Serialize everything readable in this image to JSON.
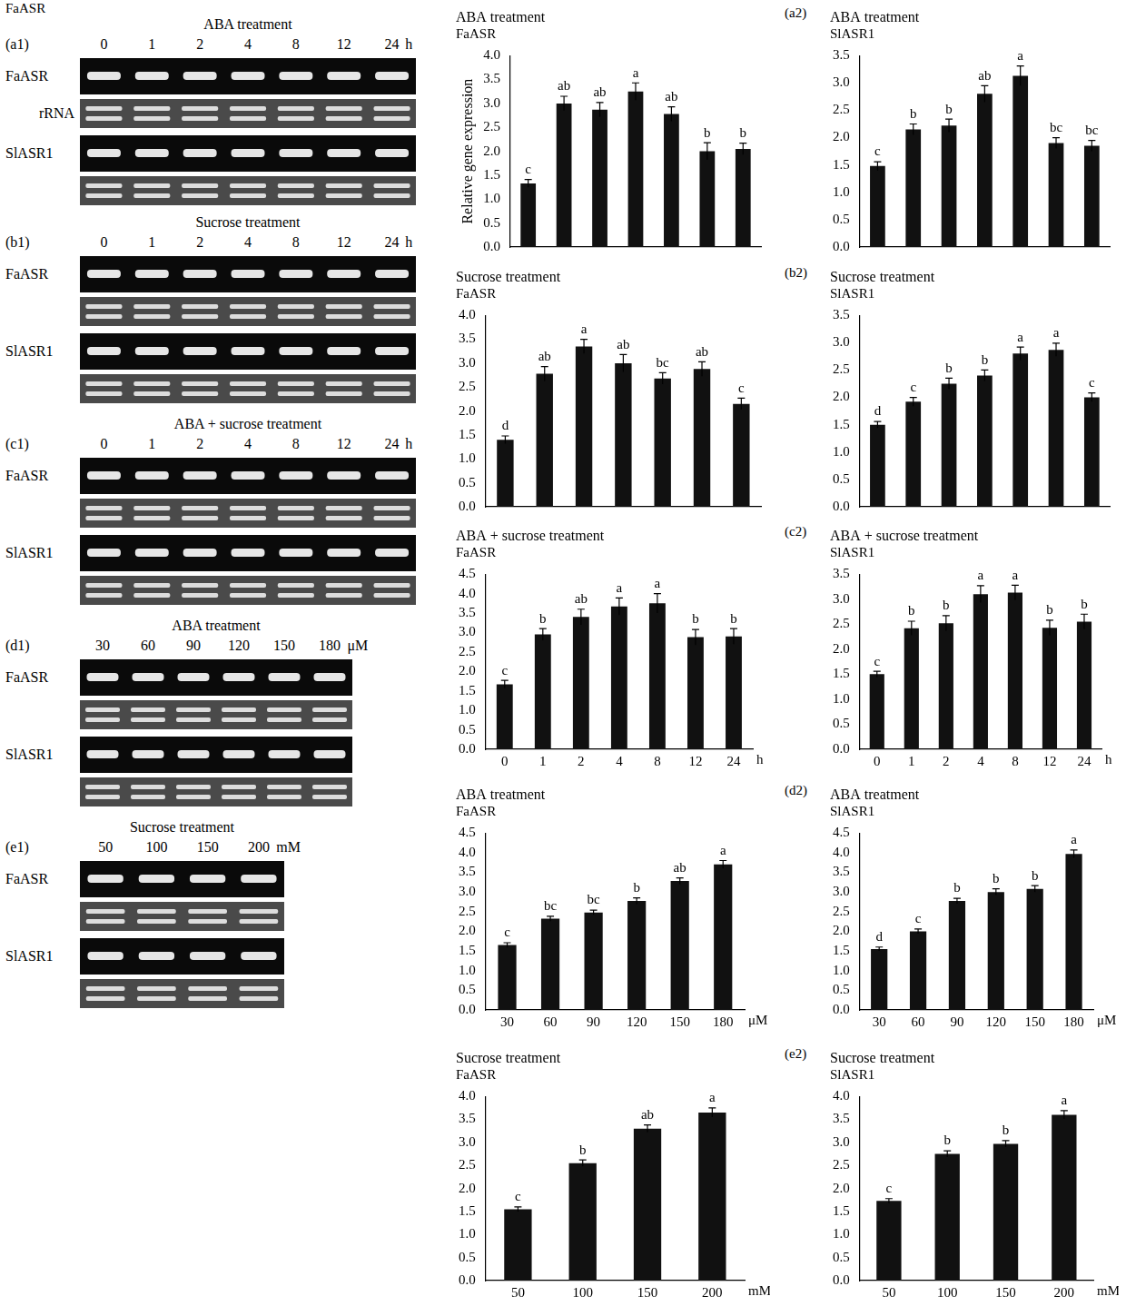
{
  "figure_label": "FaASR",
  "gels": [
    {
      "panel": "(a1)",
      "title": "ABA treatment",
      "lanes": [
        "0",
        "1",
        "2",
        "4",
        "8",
        "12",
        "24"
      ],
      "unit": "h",
      "genes": [
        "FaASR",
        "SlASR1"
      ],
      "control_label": "rRNA"
    },
    {
      "panel": "(b1)",
      "title": "Sucrose treatment",
      "lanes": [
        "0",
        "1",
        "2",
        "4",
        "8",
        "12",
        "24"
      ],
      "unit": "h",
      "genes": [
        "FaASR",
        "SlASR1"
      ]
    },
    {
      "panel": "(c1)",
      "title": "ABA + sucrose treatment",
      "lanes": [
        "0",
        "1",
        "2",
        "4",
        "8",
        "12",
        "24"
      ],
      "unit": "h",
      "genes": [
        "FaASR",
        "SlASR1"
      ]
    },
    {
      "panel": "(d1)",
      "title": "ABA treatment",
      "lanes": [
        "30",
        "60",
        "90",
        "120",
        "150",
        "180"
      ],
      "unit": "μM",
      "genes": [
        "FaASR",
        "SlASR1"
      ]
    },
    {
      "panel": "(e1)",
      "title": "Sucrose treatment",
      "lanes": [
        "50",
        "100",
        "150",
        "200"
      ],
      "unit": "mM",
      "genes": [
        "FaASR",
        "SlASR1"
      ]
    }
  ],
  "chart_data": [
    {
      "type": "bar",
      "title": "ABA treatment",
      "subtitle": "FaASR",
      "ylabel": "Relative gene expression",
      "categories": [
        null,
        null,
        null,
        null,
        null,
        null,
        null
      ],
      "values": [
        1.33,
        3.0,
        2.87,
        3.25,
        2.78,
        2.0,
        2.05
      ],
      "errors": [
        0.08,
        0.15,
        0.15,
        0.18,
        0.15,
        0.18,
        0.12
      ],
      "letters": [
        "c",
        "ab",
        "ab",
        "a",
        "ab",
        "b",
        "b"
      ],
      "color": "#111111",
      "grid": false,
      "tick_labels": "y",
      "ylim": [
        0,
        4
      ],
      "yticks": [
        {
          "value": 0,
          "label": "0.0"
        },
        {
          "value": 0.5,
          "label": "0.5"
        },
        {
          "value": 1,
          "label": "1.0"
        },
        {
          "value": 1.5,
          "label": "1.5"
        },
        {
          "value": 2,
          "label": "2.0"
        },
        {
          "value": 2.5,
          "label": "2.5"
        },
        {
          "value": 3,
          "label": "3.0"
        },
        {
          "value": 3.5,
          "label": "3.5"
        },
        {
          "value": 4,
          "label": "4.0"
        }
      ]
    },
    {
      "type": "bar",
      "panel": "(a2)",
      "title": "ABA treatment",
      "subtitle": "SlASR1",
      "categories": [
        null,
        null,
        null,
        null,
        null,
        null,
        null
      ],
      "values": [
        1.48,
        2.15,
        2.22,
        2.8,
        3.13,
        1.9,
        1.85
      ],
      "errors": [
        0.08,
        0.1,
        0.12,
        0.15,
        0.18,
        0.1,
        0.1
      ],
      "letters": [
        "c",
        "b",
        "b",
        "ab",
        "a",
        "bc",
        "bc"
      ],
      "color": "#111111",
      "grid": false,
      "tick_labels": "y",
      "ylim": [
        0,
        3.5
      ],
      "yticks": [
        {
          "value": 0,
          "label": "0.0"
        },
        {
          "value": 0.5,
          "label": "0.5"
        },
        {
          "value": 1,
          "label": "1.0"
        },
        {
          "value": 1.5,
          "label": "1.5"
        },
        {
          "value": 2,
          "label": "2.0"
        },
        {
          "value": 2.5,
          "label": "2.5"
        },
        {
          "value": 3,
          "label": "3.0"
        },
        {
          "value": 3.5,
          "label": "3.5"
        }
      ]
    },
    {
      "type": "bar",
      "title": "Sucrose treatment",
      "subtitle": "FaASR",
      "categories": [
        null,
        null,
        null,
        null,
        null,
        null,
        null
      ],
      "values": [
        1.4,
        2.78,
        3.35,
        3.0,
        2.68,
        2.88,
        2.15
      ],
      "errors": [
        0.08,
        0.15,
        0.15,
        0.18,
        0.12,
        0.15,
        0.12
      ],
      "letters": [
        "d",
        "ab",
        "a",
        "ab",
        "bc",
        "ab",
        "c"
      ],
      "color": "#111111",
      "grid": false,
      "tick_labels": "y",
      "ylim": [
        0,
        4
      ],
      "yticks": [
        {
          "value": 0,
          "label": "0.0"
        },
        {
          "value": 0.5,
          "label": "0.5"
        },
        {
          "value": 1,
          "label": "1.0"
        },
        {
          "value": 1.5,
          "label": "1.5"
        },
        {
          "value": 2,
          "label": "2.0"
        },
        {
          "value": 2.5,
          "label": "2.5"
        },
        {
          "value": 3,
          "label": "3.0"
        },
        {
          "value": 3.5,
          "label": "3.5"
        },
        {
          "value": 4,
          "label": "4.0"
        }
      ]
    },
    {
      "type": "bar",
      "panel": "(b2)",
      "title": "Sucrose treatment",
      "subtitle": "SlASR1",
      "categories": [
        null,
        null,
        null,
        null,
        null,
        null,
        null
      ],
      "values": [
        1.5,
        1.92,
        2.25,
        2.4,
        2.8,
        2.87,
        2.0
      ],
      "errors": [
        0.06,
        0.08,
        0.1,
        0.1,
        0.12,
        0.12,
        0.08
      ],
      "letters": [
        "d",
        "c",
        "b",
        "b",
        "a",
        "a",
        "c"
      ],
      "color": "#111111",
      "grid": false,
      "tick_labels": "y",
      "ylim": [
        0,
        3.5
      ],
      "yticks": [
        {
          "value": 0,
          "label": "0.0"
        },
        {
          "value": 0.5,
          "label": "0.5"
        },
        {
          "value": 1,
          "label": "1.0"
        },
        {
          "value": 1.5,
          "label": "1.5"
        },
        {
          "value": 2,
          "label": "2.0"
        },
        {
          "value": 2.5,
          "label": "2.5"
        },
        {
          "value": 3,
          "label": "3.0"
        },
        {
          "value": 3.5,
          "label": "3.5"
        }
      ]
    },
    {
      "type": "bar",
      "title": "ABA + sucrose treatment",
      "subtitle": "FaASR",
      "xlabel": "h",
      "categories": [
        "0",
        "1",
        "2",
        "4",
        "8",
        "12",
        "24"
      ],
      "values": [
        1.67,
        2.95,
        3.4,
        3.67,
        3.75,
        2.88,
        2.9
      ],
      "errors": [
        0.1,
        0.15,
        0.2,
        0.22,
        0.25,
        0.2,
        0.2
      ],
      "letters": [
        "c",
        "b",
        "ab",
        "a",
        "a",
        "b",
        "b"
      ],
      "color": "#111111",
      "grid": false,
      "ylim": [
        0,
        4.5
      ],
      "yticks": [
        {
          "value": 0,
          "label": "0.0"
        },
        {
          "value": 0.5,
          "label": "0.5"
        },
        {
          "value": 1,
          "label": "1.0"
        },
        {
          "value": 1.5,
          "label": "1.5"
        },
        {
          "value": 2,
          "label": "2.0"
        },
        {
          "value": 2.5,
          "label": "2.5"
        },
        {
          "value": 3,
          "label": "3.0"
        },
        {
          "value": 3.5,
          "label": "3.5"
        },
        {
          "value": 4,
          "label": "4.0"
        },
        {
          "value": 4.5,
          "label": "4.5"
        }
      ]
    },
    {
      "type": "bar",
      "panel": "(c2)",
      "title": "ABA + sucrose treatment",
      "subtitle": "SlASR1",
      "xlabel": "h",
      "categories": [
        "0",
        "1",
        "2",
        "4",
        "8",
        "12",
        "24"
      ],
      "values": [
        1.5,
        2.42,
        2.52,
        3.1,
        3.13,
        2.43,
        2.55
      ],
      "errors": [
        0.06,
        0.14,
        0.15,
        0.17,
        0.15,
        0.15,
        0.15
      ],
      "letters": [
        "c",
        "b",
        "b",
        "a",
        "a",
        "b",
        "b"
      ],
      "color": "#111111",
      "grid": false,
      "ylim": [
        0,
        3.5
      ],
      "yticks": [
        {
          "value": 0,
          "label": "0.0"
        },
        {
          "value": 0.5,
          "label": "0.5"
        },
        {
          "value": 1,
          "label": "1.0"
        },
        {
          "value": 1.5,
          "label": "1.5"
        },
        {
          "value": 2,
          "label": "2.0"
        },
        {
          "value": 2.5,
          "label": "2.5"
        },
        {
          "value": 3,
          "label": "3.0"
        },
        {
          "value": 3.5,
          "label": "3.5"
        }
      ]
    },
    {
      "type": "bar",
      "title": "ABA treatment",
      "subtitle": "FaASR",
      "xlabel": "μM",
      "categories": [
        "30",
        "60",
        "90",
        "120",
        "150",
        "180"
      ],
      "values": [
        1.65,
        2.32,
        2.48,
        2.77,
        3.28,
        3.7
      ],
      "errors": [
        0.06,
        0.06,
        0.06,
        0.08,
        0.08,
        0.1
      ],
      "letters": [
        "c",
        "bc",
        "bc",
        "b",
        "ab",
        "a"
      ],
      "color": "#111111",
      "grid": false,
      "ylim": [
        0,
        4.5
      ],
      "yticks": [
        {
          "value": 0,
          "label": "0.0"
        },
        {
          "value": 0.5,
          "label": "0.5"
        },
        {
          "value": 1,
          "label": "1.0"
        },
        {
          "value": 1.5,
          "label": "1.5"
        },
        {
          "value": 2,
          "label": "2.0"
        },
        {
          "value": 2.5,
          "label": "2.5"
        },
        {
          "value": 3,
          "label": "3.0"
        },
        {
          "value": 3.5,
          "label": "3.5"
        },
        {
          "value": 4,
          "label": "4.0"
        },
        {
          "value": 4.5,
          "label": "4.5"
        }
      ]
    },
    {
      "type": "bar",
      "panel": "(d2)",
      "title": "ABA treatment",
      "subtitle": "SlASR1",
      "xlabel": "μM",
      "categories": [
        "30",
        "60",
        "90",
        "120",
        "150",
        "180"
      ],
      "values": [
        1.55,
        2.0,
        2.77,
        3.0,
        3.08,
        3.97
      ],
      "errors": [
        0.05,
        0.06,
        0.07,
        0.08,
        0.08,
        0.1
      ],
      "letters": [
        "d",
        "c",
        "b",
        "b",
        "b",
        "a"
      ],
      "color": "#111111",
      "grid": false,
      "ylim": [
        0,
        4.5
      ],
      "yticks": [
        {
          "value": 0,
          "label": "0.0"
        },
        {
          "value": 0.5,
          "label": "0.5"
        },
        {
          "value": 1,
          "label": "1.0"
        },
        {
          "value": 1.5,
          "label": "1.5"
        },
        {
          "value": 2,
          "label": "2.0"
        },
        {
          "value": 2.5,
          "label": "2.5"
        },
        {
          "value": 3,
          "label": "3.0"
        },
        {
          "value": 3.5,
          "label": "3.5"
        },
        {
          "value": 4,
          "label": "4.0"
        },
        {
          "value": 4.5,
          "label": "4.5"
        }
      ]
    },
    {
      "type": "bar",
      "title": "Sucrose treatment",
      "subtitle": "FaASR",
      "xlabel": "mM",
      "categories": [
        "50",
        "100",
        "150",
        "200"
      ],
      "values": [
        1.55,
        2.55,
        3.3,
        3.65
      ],
      "errors": [
        0.05,
        0.07,
        0.08,
        0.1
      ],
      "letters": [
        "c",
        "b",
        "ab",
        "a"
      ],
      "color": "#111111",
      "grid": false,
      "ylim": [
        0,
        4
      ],
      "yticks": [
        {
          "value": 0,
          "label": "0.0"
        },
        {
          "value": 0.5,
          "label": "0.5"
        },
        {
          "value": 1,
          "label": "1.0"
        },
        {
          "value": 1.5,
          "label": "1.5"
        },
        {
          "value": 2,
          "label": "2.0"
        },
        {
          "value": 2.5,
          "label": "2.5"
        },
        {
          "value": 3,
          "label": "3.0"
        },
        {
          "value": 3.5,
          "label": "3.5"
        },
        {
          "value": 4,
          "label": "4.0"
        }
      ]
    },
    {
      "type": "bar",
      "panel": "(e2)",
      "title": "Sucrose treatment",
      "subtitle": "SlASR1",
      "xlabel": "mM",
      "categories": [
        "50",
        "100",
        "150",
        "200"
      ],
      "values": [
        1.73,
        2.75,
        2.97,
        3.6
      ],
      "errors": [
        0.05,
        0.07,
        0.07,
        0.09
      ],
      "letters": [
        "c",
        "b",
        "b",
        "a"
      ],
      "color": "#111111",
      "grid": false,
      "ylim": [
        0,
        4
      ],
      "yticks": [
        {
          "value": 0,
          "label": "0.0"
        },
        {
          "value": 0.5,
          "label": "0.5"
        },
        {
          "value": 1,
          "label": "1.0"
        },
        {
          "value": 1.5,
          "label": "1.5"
        },
        {
          "value": 2,
          "label": "2.0"
        },
        {
          "value": 2.5,
          "label": "2.5"
        },
        {
          "value": 3,
          "label": "3.0"
        },
        {
          "value": 3.5,
          "label": "3.5"
        },
        {
          "value": 4,
          "label": "4.0"
        }
      ]
    }
  ]
}
